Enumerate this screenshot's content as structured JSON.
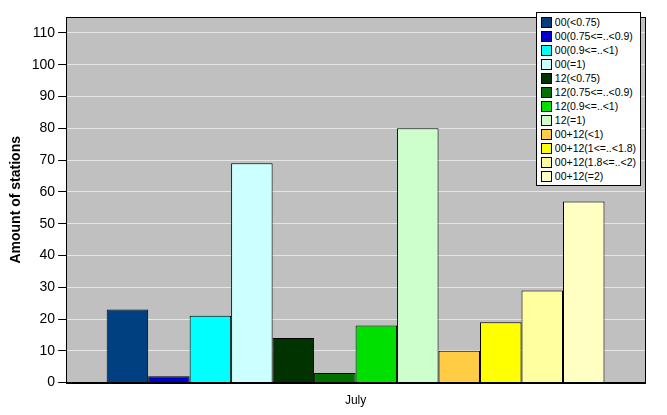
{
  "chart_data": {
    "type": "bar",
    "categories": [
      "July"
    ],
    "y_label": "Amount of stations",
    "ylim": [
      0,
      115
    ],
    "yticks": [
      0,
      10,
      20,
      30,
      40,
      50,
      60,
      70,
      80,
      90,
      100,
      110
    ],
    "grid": true,
    "legend": "top right",
    "series": [
      {
        "name": "00(<0.75)",
        "color": "#003f80",
        "values": [
          23
        ]
      },
      {
        "name": "00(0.75<=..<0.9)",
        "color": "#0000cc",
        "values": [
          2
        ]
      },
      {
        "name": "00(0.9<=..<1)",
        "color": "#00ffff",
        "values": [
          21
        ]
      },
      {
        "name": "00(=1)",
        "color": "#ccffff",
        "values": [
          69
        ]
      },
      {
        "name": "12(<0.75)",
        "color": "#003300",
        "values": [
          14
        ]
      },
      {
        "name": "12(0.75<=..<0.9)",
        "color": "#007000",
        "values": [
          3
        ]
      },
      {
        "name": "12(0.9<=..<1)",
        "color": "#00e000",
        "values": [
          18
        ]
      },
      {
        "name": "12(=1)",
        "color": "#ccffcc",
        "values": [
          80
        ]
      },
      {
        "name": "00+12(<1)",
        "color": "#ffcc44",
        "values": [
          10
        ]
      },
      {
        "name": "00+12(1<=..<1.8)",
        "color": "#ffff00",
        "values": [
          19
        ]
      },
      {
        "name": "00+12(1.8<=..<2)",
        "color": "#ffffa0",
        "values": [
          29
        ]
      },
      {
        "name": "00+12(=2)",
        "color": "#ffffc4",
        "values": [
          57
        ]
      }
    ]
  }
}
